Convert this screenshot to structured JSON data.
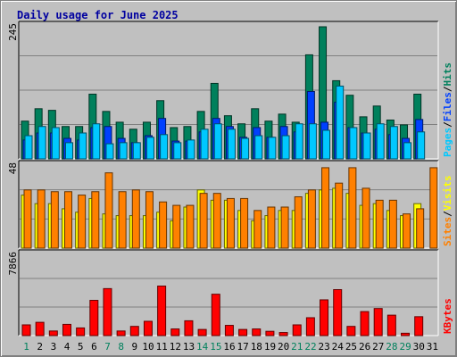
{
  "chart_data": {
    "type": "bar",
    "title": "Daily usage for June 2025",
    "days": [
      "1",
      "2",
      "3",
      "4",
      "5",
      "6",
      "7",
      "8",
      "9",
      "10",
      "11",
      "12",
      "13",
      "14",
      "15",
      "16",
      "17",
      "18",
      "19",
      "20",
      "21",
      "22",
      "23",
      "24",
      "25",
      "26",
      "27",
      "28",
      "29",
      "30",
      "31"
    ],
    "weekend_days": [
      "1",
      "7",
      "8",
      "14",
      "15",
      "21",
      "22",
      "28",
      "29"
    ],
    "panels": [
      {
        "name": "hits_files_pages",
        "ymax_label": "245",
        "ymax": 245,
        "legend": [
          "Pages",
          "Files",
          "Hits"
        ],
        "series": [
          {
            "name": "Hits",
            "color": "#00805c",
            "values": [
              70,
              93,
              90,
              60,
              60,
              120,
              88,
              68,
              55,
              68,
              108,
              58,
              60,
              88,
              140,
              80,
              65,
              93,
              70,
              83,
              68,
              193,
              245,
              145,
              118,
              78,
              98,
              72,
              63,
              120,
              0
            ]
          },
          {
            "name": "Files",
            "color": "#0040ff",
            "values": [
              35,
              48,
              48,
              38,
              35,
              58,
              60,
              38,
              30,
              43,
              75,
              33,
              33,
              50,
              75,
              60,
              40,
              58,
              40,
              60,
              50,
              125,
              68,
              105,
              58,
              48,
              55,
              45,
              38,
              73,
              0
            ]
          },
          {
            "name": "Pages",
            "color": "#00c8ff",
            "values": [
              43,
              60,
              58,
              30,
              48,
              65,
              28,
              30,
              30,
              40,
              45,
              30,
              35,
              55,
              65,
              55,
              38,
              43,
              40,
              43,
              65,
              65,
              53,
              135,
              58,
              48,
              65,
              60,
              30,
              50,
              0
            ]
          }
        ]
      },
      {
        "name": "visits_sites",
        "ymax_label": "48",
        "ymax": 48,
        "legend": [
          "Sites",
          "Visits"
        ],
        "series": [
          {
            "name": "Visits",
            "color": "#ffff00",
            "values": [
              31,
              26,
              26,
              23,
              21,
              29,
              20,
              19,
              19,
              19,
              21,
              16,
              24,
              34,
              28,
              28,
              22,
              16,
              19,
              22,
              22,
              32,
              34,
              35,
              32,
              25,
              26,
              22,
              19,
              26,
              0
            ]
          },
          {
            "name": "Sites",
            "color": "#ff8000",
            "values": [
              34,
              34,
              33,
              33,
              31,
              33,
              44,
              33,
              34,
              33,
              27,
              25,
              25,
              32,
              32,
              29,
              29,
              22,
              24,
              24,
              30,
              34,
              47,
              38,
              47,
              35,
              28,
              28,
              20,
              23,
              47
            ]
          }
        ]
      },
      {
        "name": "kbytes",
        "ymax_label": "7866",
        "ymax": 7866,
        "legend": [
          "KBytes"
        ],
        "series": [
          {
            "name": "KBytes",
            "color": "#ff0000",
            "values": [
              1050,
              1300,
              450,
              1100,
              750,
              3450,
              4600,
              450,
              900,
              1400,
              4850,
              650,
              1450,
              600,
              4050,
              1000,
              600,
              650,
              420,
              300,
              1050,
              1750,
              3500,
              4500,
              900,
              2350,
              2650,
              2000,
              230,
              1850,
              0
            ]
          }
        ]
      }
    ]
  }
}
